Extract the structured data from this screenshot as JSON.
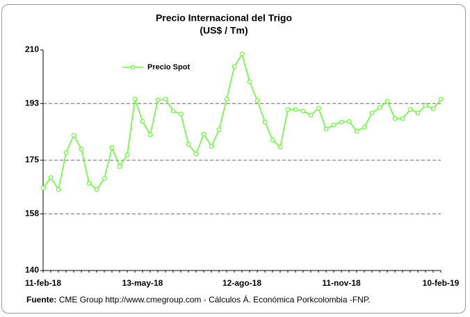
{
  "chart_data": {
    "type": "line",
    "title": "Precio Internacional del Trigo",
    "subtitle": "(US$ / Tm)",
    "categories": [
      "11-feb-18",
      null,
      null,
      null,
      null,
      null,
      null,
      null,
      null,
      null,
      null,
      null,
      null,
      "13-may-18",
      null,
      null,
      null,
      null,
      null,
      null,
      null,
      null,
      null,
      null,
      null,
      null,
      "12-ago-18",
      null,
      null,
      null,
      null,
      null,
      null,
      null,
      null,
      null,
      null,
      null,
      null,
      "11-nov-18",
      null,
      null,
      null,
      null,
      null,
      null,
      null,
      null,
      null,
      null,
      null,
      null,
      "10-feb-19"
    ],
    "series": [
      {
        "name": "Precio Spot",
        "color": "#66ff33",
        "values": [
          166.2,
          169.5,
          165.7,
          177.4,
          182.9,
          178.5,
          167.7,
          165.7,
          169.2,
          179,
          173,
          176.7,
          194.4,
          187.3,
          183.1,
          194.1,
          194.4,
          190.6,
          189.7,
          180,
          177,
          183.3,
          179.4,
          184.7,
          194.4,
          204.7,
          208.7,
          199.9,
          193.9,
          187.1,
          181.4,
          179.2,
          191.1,
          191.1,
          190.6,
          189.3,
          191.5,
          184.9,
          186.2,
          187.1,
          187.3,
          184.2,
          185.5,
          190,
          191.7,
          193.7,
          188.2,
          188.2,
          191.1,
          190,
          192.4,
          191.3,
          194.4
        ]
      }
    ],
    "ylim": [
      140,
      210
    ],
    "yticks": [
      140,
      158,
      175,
      193,
      210
    ],
    "grid": true,
    "legend": "top-left",
    "source_label": "Fuente:",
    "source": "CME Group http://www.cmegroup.com - Cálculos Á. Económica Porkcolombia -FNP."
  }
}
